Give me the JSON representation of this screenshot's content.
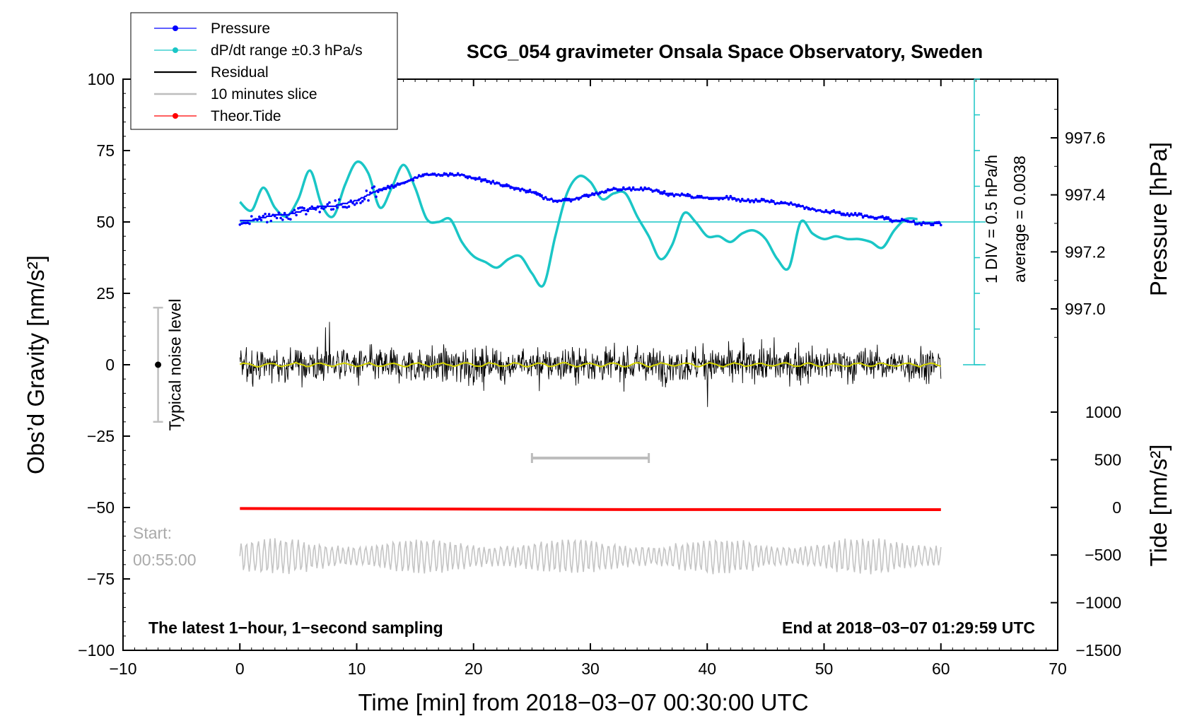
{
  "chart_data": {
    "type": "line",
    "title": "SCG_054 gravimeter Onsala Space Observatory, Sweden",
    "xlabel": "Time [min] from 2018−03−07 00:30:00 UTC",
    "ylabel_left": "Obs’d Gravity [nm/s²]",
    "ylabel_right_pressure": "Pressure [hPa]",
    "ylabel_right_tide": "Tide [nm/s²]",
    "xlim": [
      -10,
      70
    ],
    "ylim": [
      -100,
      100
    ],
    "x_ticks": [
      "−10",
      "0",
      "10",
      "20",
      "30",
      "40",
      "50",
      "60",
      "70"
    ],
    "y_ticks": [
      "100",
      "75",
      "50",
      "25",
      "0",
      "−25",
      "−50",
      "−75",
      "−100"
    ],
    "pressure_ticks": [
      "997.6",
      "997.4",
      "997.2",
      "997.0"
    ],
    "tide_ticks": [
      "1000",
      "500",
      "0",
      "−500",
      "−1000",
      "−1500"
    ],
    "pressure_axis": {
      "ticks": [
        997.6,
        997.4,
        997.2,
        997.0
      ],
      "ylim_data": [
        996.82,
        997.8
      ]
    },
    "tide_axis": {
      "ticks": [
        1000,
        500,
        0,
        -500,
        -1000,
        -1500
      ],
      "range": [
        -1500,
        1000
      ]
    },
    "legend": [
      {
        "label": "Pressure",
        "color": "#0000ff",
        "marker": true
      },
      {
        "label": "dP/dt range ±0.3 hPa/s",
        "color": "#1ac6c6",
        "marker": true
      },
      {
        "label": "Residual",
        "color": "#000000",
        "marker": false
      },
      {
        "label": "10 minutes slice",
        "color": "#bdbdbd",
        "marker": false
      },
      {
        "label": "Theor.Tide",
        "color": "#ff0000",
        "marker": true
      }
    ],
    "series": [
      {
        "name": "Pressure",
        "unit": "hPa",
        "color": "#0000ff",
        "x": [
          0,
          1,
          2,
          3,
          4,
          5,
          6,
          7,
          8,
          9,
          10,
          11,
          12,
          13,
          14,
          15,
          16,
          17,
          18,
          19,
          20,
          21,
          22,
          23,
          24,
          25,
          26,
          27,
          28,
          29,
          30,
          31,
          32,
          33,
          34,
          35,
          36,
          37,
          38,
          39,
          40,
          41,
          42,
          43,
          44,
          45,
          46,
          47,
          48,
          49,
          50,
          51,
          52,
          53,
          54,
          55,
          56,
          57,
          58,
          59,
          60
        ],
        "values": [
          997.31,
          997.31,
          997.32,
          997.33,
          997.33,
          997.34,
          997.35,
          997.36,
          997.36,
          997.37,
          997.38,
          997.4,
          997.42,
          997.43,
          997.44,
          997.46,
          997.47,
          997.47,
          997.47,
          997.47,
          997.46,
          997.45,
          997.44,
          997.43,
          997.42,
          997.41,
          997.39,
          997.38,
          997.38,
          997.39,
          997.4,
          997.41,
          997.42,
          997.42,
          997.42,
          997.42,
          997.41,
          997.4,
          997.4,
          997.39,
          997.39,
          997.39,
          997.39,
          997.38,
          997.38,
          997.38,
          997.37,
          997.37,
          997.36,
          997.35,
          997.34,
          997.34,
          997.33,
          997.33,
          997.32,
          997.32,
          997.31,
          997.31,
          997.3,
          997.3,
          997.3
        ]
      },
      {
        "name": "dP/dt range ±0.3 hPa/s",
        "unit": "nm/s² (plot scale)",
        "color": "#1ac6c6",
        "x": [
          0,
          1,
          2,
          3,
          4,
          5,
          6,
          7,
          8,
          9,
          10,
          11,
          12,
          13,
          14,
          15,
          16,
          17,
          18,
          19,
          20,
          21,
          22,
          23,
          24,
          25,
          26,
          27,
          28,
          29,
          30,
          31,
          32,
          33,
          34,
          35,
          36,
          37,
          38,
          39,
          40,
          41,
          42,
          43,
          44,
          45,
          46,
          47,
          48,
          49,
          50,
          51,
          52,
          53,
          54,
          55,
          56,
          57,
          58
        ],
        "values": [
          57,
          54,
          62,
          55,
          52,
          58,
          68,
          56,
          52,
          63,
          71,
          67,
          55,
          62,
          70,
          62,
          51,
          50,
          51,
          43,
          38,
          36,
          34,
          37,
          38,
          32,
          28,
          45,
          60,
          66,
          64,
          58,
          60,
          60,
          52,
          45,
          37,
          42,
          53,
          50,
          45,
          45,
          43,
          46,
          47,
          44,
          37,
          34,
          50,
          46,
          44,
          45,
          44,
          44,
          43,
          41,
          47,
          51,
          51
        ]
      },
      {
        "name": "Residual",
        "unit": "nm/s²",
        "color": "#000000",
        "x_range": [
          0,
          60
        ],
        "mean": 0,
        "amplitude_range": [
          -16,
          15
        ]
      },
      {
        "name": "10 minutes slice",
        "unit": "min",
        "color": "#bdbdbd",
        "x_range": [
          25,
          35
        ]
      },
      {
        "name": "Theor.Tide",
        "unit": "nm/s²",
        "color": "#ff0000",
        "x": [
          0,
          10,
          20,
          30,
          40,
          50,
          60
        ],
        "values": [
          -12,
          -14,
          -18,
          -22,
          -23,
          -24,
          -24
        ]
      }
    ],
    "raw_trace_note": "gray oscillating trace, ±5 nm/s² about −67",
    "zero_line_yellow": "#d4d400",
    "annotations": {
      "noise_label": "Typical noise level",
      "noise_range": [
        -20,
        20
      ],
      "noise_x": -7,
      "div_label": "1 DIV = 0.5 hPa/h",
      "average_label": "average = 0.0038",
      "start_label": "Start:",
      "start_time": "00:55:00",
      "footer_left": "The latest 1−hour, 1−second sampling",
      "footer_right": "End at 2018−03−07 01:29:59 UTC"
    }
  }
}
